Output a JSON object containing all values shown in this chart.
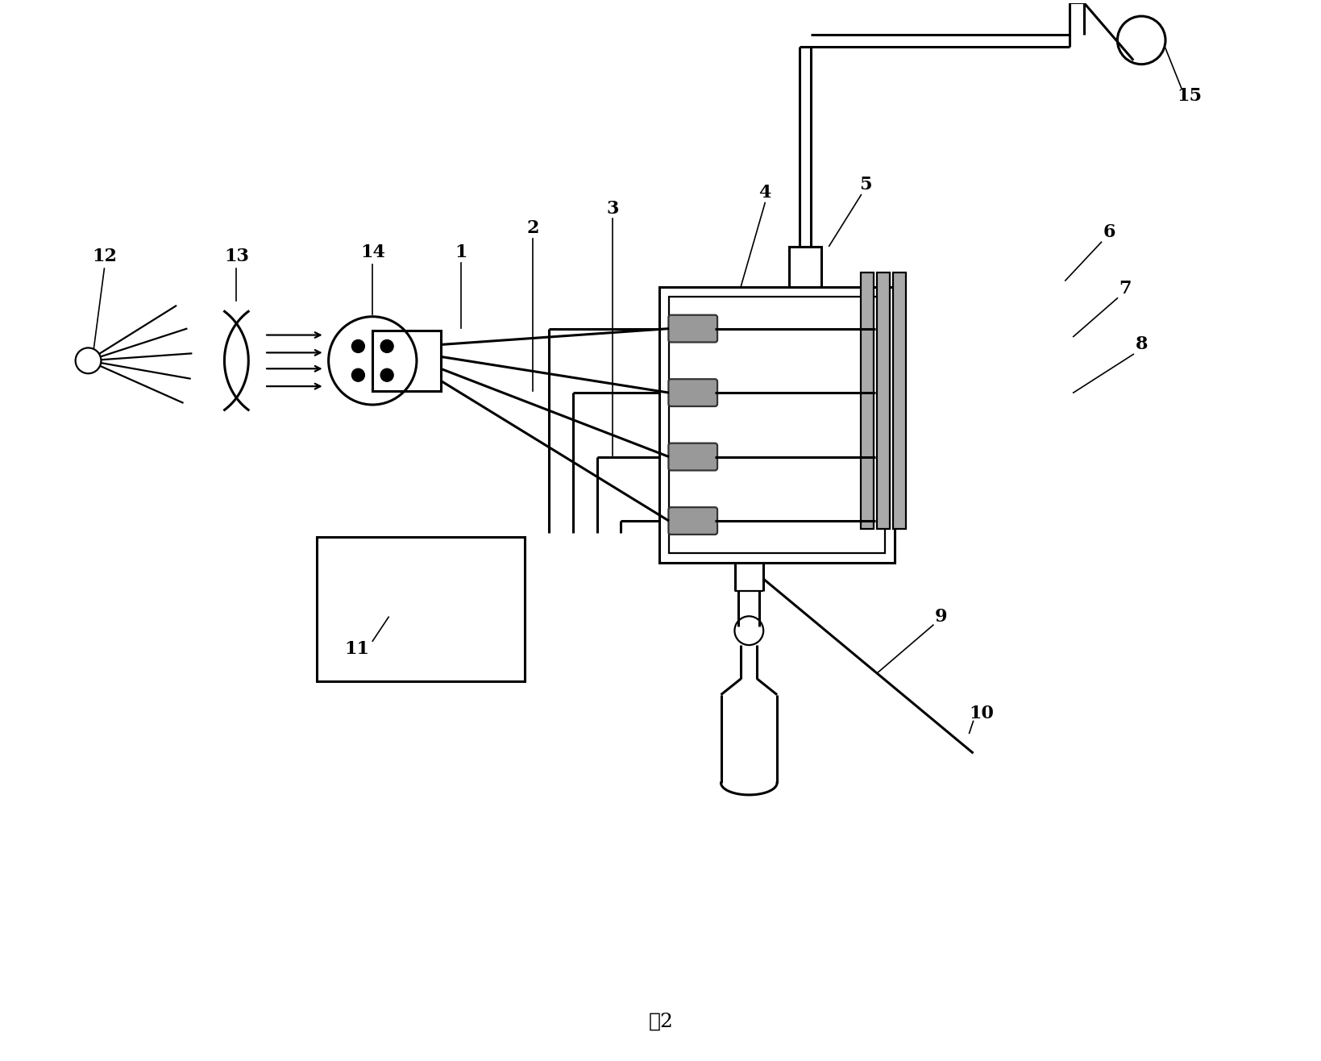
{
  "title": "图2",
  "bg": "#ffffff",
  "lc": "#000000",
  "lw": 1.6,
  "lwt": 2.2,
  "label_fs": 16,
  "title_fs": 18
}
